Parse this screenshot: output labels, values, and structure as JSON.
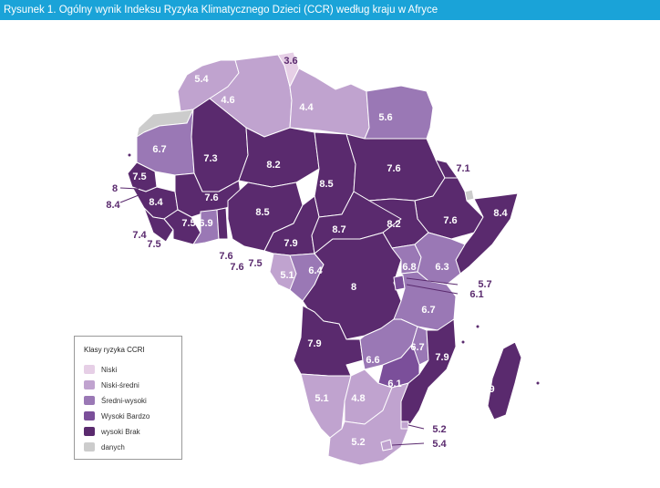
{
  "title": "Rysunek 1. Ogólny wynik Indeksu Ryzyka Klimatycznego Dzieci (CCR) według kraju w Afryce",
  "colors": {
    "title_bar": "#1aa3d8",
    "niski": "#e6cfe6",
    "niski_sredni": "#c0a3cf",
    "sredni_wysoki": "#9a78b5",
    "wysoki_bardzo": "#7b4f9a",
    "wysoki_brak": "#5a2a6e",
    "no_data": "#cccccc",
    "border": "#ffffff"
  },
  "legend": {
    "title": "Klasy ryzyka CCRI",
    "items": [
      {
        "label": "Niski",
        "color": "#e6cfe6"
      },
      {
        "label": "Niski-średni",
        "color": "#c0a3cf"
      },
      {
        "label": "Średni-wysoki",
        "color": "#9a78b5"
      },
      {
        "label": "Wysoki Bardzo",
        "color": "#7b4f9a"
      },
      {
        "label": "wysoki Brak",
        "color": "#5a2a6e"
      },
      {
        "label": "danych",
        "color": "#cccccc"
      }
    ]
  },
  "scores": [
    "3.6",
    "5.4",
    "4.6",
    "4.4",
    "5.6",
    "6.7",
    "7.3",
    "8.2",
    "8.5",
    "7.6",
    "7.1",
    "7.5",
    "8",
    "8.4",
    "7.6",
    "8.5",
    "8.4",
    "7.5",
    "6.9",
    "7.4",
    "7.5",
    "8.7",
    "8.2",
    "7.6",
    "8.4",
    "7.9",
    "7.6",
    "7.6",
    "7.5",
    "5.1",
    "6.4",
    "6.8",
    "6.3",
    "5.7",
    "6.1",
    "8",
    "6.7",
    "7.9",
    "6.7",
    "6.6",
    "7.9",
    "6.1",
    "7.9",
    "5.1",
    "4.8",
    "5.2",
    "5.2",
    "5.4"
  ]
}
